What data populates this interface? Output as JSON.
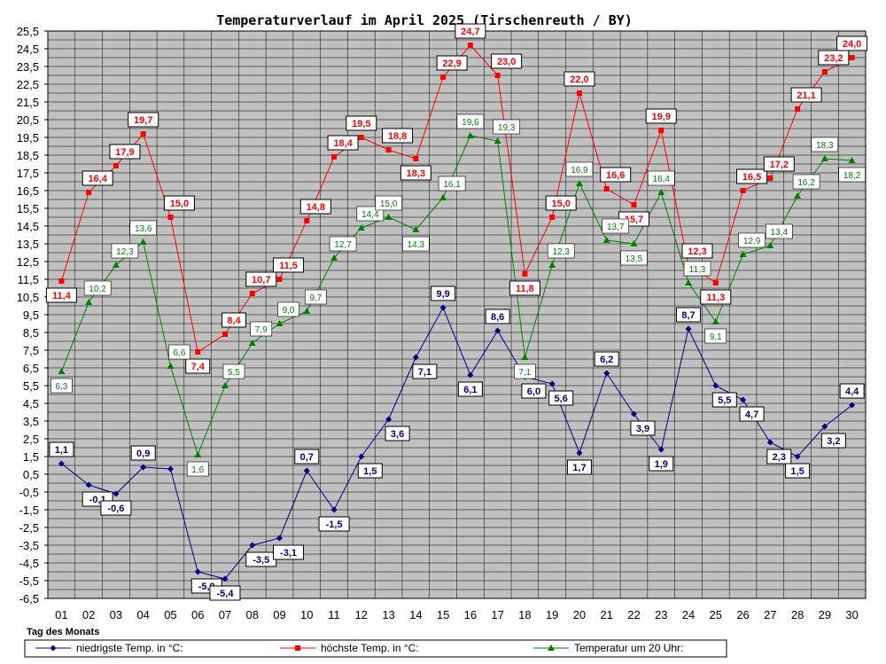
{
  "chart_data": {
    "type": "line",
    "title": "Temperaturverlauf im April 2025 (Tirschenreuth / BY)",
    "xlabel": "Tag des Monats",
    "ylabel": "",
    "categories": [
      "01",
      "02",
      "03",
      "04",
      "05",
      "06",
      "07",
      "08",
      "09",
      "10",
      "11",
      "12",
      "13",
      "14",
      "15",
      "16",
      "17",
      "18",
      "19",
      "20",
      "21",
      "22",
      "23",
      "24",
      "25",
      "26",
      "27",
      "28",
      "29",
      "30"
    ],
    "ylim": [
      -6.5,
      25.5
    ],
    "yticks": [
      "25,5",
      "24,5",
      "23,5",
      "22,5",
      "21,5",
      "20,5",
      "19,5",
      "18,5",
      "17,5",
      "16,5",
      "15,5",
      "14,5",
      "13,5",
      "12,5",
      "11,5",
      "10,5",
      "9,5",
      "8,5",
      "7,5",
      "6,5",
      "5,5",
      "4,5",
      "3,5",
      "2,5",
      "1,5",
      "0,5",
      "-0,5",
      "-1,5",
      "-2,5",
      "-3,5",
      "-4,5",
      "-5,5",
      "-6,5"
    ],
    "grid": true,
    "legend": "bottom",
    "series": [
      {
        "name": "niedrigste Temp. in °C:",
        "color": "#000080",
        "marker": "diamond",
        "values": [
          1.1,
          -0.1,
          -0.6,
          0.9,
          0.8,
          -5.0,
          -5.4,
          -3.5,
          -3.1,
          0.7,
          -1.5,
          1.5,
          3.6,
          7.1,
          9.9,
          6.1,
          8.6,
          6.0,
          5.6,
          1.7,
          6.2,
          3.9,
          1.9,
          8.7,
          5.5,
          4.7,
          2.3,
          1.5,
          3.2,
          4.4
        ],
        "labels": [
          "1,1",
          "-0,1",
          "-0,6",
          "0,9",
          "",
          "-5,0",
          "-5,4",
          "-3,5",
          "-3,1",
          "0,7",
          "-1,5",
          "1,5",
          "3,6",
          "7,1",
          "9,9",
          "6,1",
          "8,6",
          "6,0",
          "5,6",
          "1,7",
          "6,2",
          "3,9",
          "1,9",
          "8,7",
          "5,5",
          "4,7",
          "2,3",
          "1,5",
          "3,2",
          "4,4"
        ]
      },
      {
        "name": "höchste Temp. in °C:",
        "color": "#ff0000",
        "marker": "square",
        "values": [
          11.4,
          16.4,
          17.9,
          19.7,
          15.0,
          7.4,
          8.4,
          10.7,
          11.5,
          14.8,
          18.4,
          19.5,
          18.8,
          18.3,
          22.9,
          24.7,
          23.0,
          11.8,
          15.0,
          22.0,
          16.6,
          15.7,
          19.9,
          12.3,
          11.3,
          16.5,
          17.2,
          21.1,
          23.2,
          24.0
        ],
        "labels": [
          "11,4",
          "16,4",
          "17,9",
          "19,7",
          "15,0",
          "7,4",
          "8,4",
          "10,7",
          "11,5",
          "14,8",
          "18,4",
          "19,5",
          "18,8",
          "18,3",
          "22,9",
          "24,7",
          "23,0",
          "11,8",
          "15,0",
          "22,0",
          "16,6",
          "15,7",
          "19,9",
          "12,3",
          "11,3",
          "16,5",
          "17,2",
          "21,1",
          "23,2",
          "24,0"
        ]
      },
      {
        "name": "Temperatur um 20 Uhr:",
        "color": "#008000",
        "marker": "triangle",
        "values": [
          6.3,
          10.2,
          12.3,
          13.6,
          6.6,
          1.6,
          5.5,
          7.9,
          9.0,
          9.7,
          12.7,
          14.4,
          15.0,
          14.3,
          16.1,
          19.6,
          19.3,
          7.1,
          12.3,
          16.9,
          13.7,
          13.5,
          16.4,
          11.3,
          9.1,
          12.9,
          13.4,
          16.2,
          18.3,
          18.2
        ],
        "labels": [
          "6,3",
          "10,2",
          "12,3",
          "13,6",
          "6,6",
          "1,6",
          "5,5",
          "7,9",
          "9,0",
          "9,7",
          "12,7",
          "14,4",
          "15,0",
          "14,3",
          "16,1",
          "19,6",
          "19,3",
          "7,1",
          "12,3",
          "16,9",
          "13,7",
          "13,5",
          "16,4",
          "11,3",
          "9,1",
          "12,9",
          "13,4",
          "16,2",
          "18,3",
          "18,2"
        ]
      }
    ]
  }
}
